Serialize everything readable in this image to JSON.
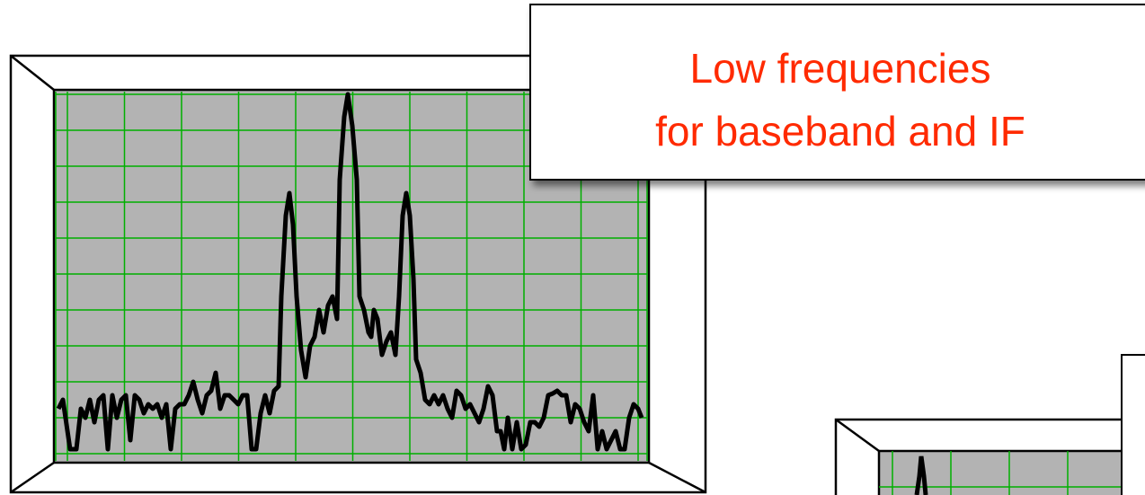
{
  "callout": {
    "lines": [
      "Low frequencies",
      "for baseband and IF"
    ]
  }
}
